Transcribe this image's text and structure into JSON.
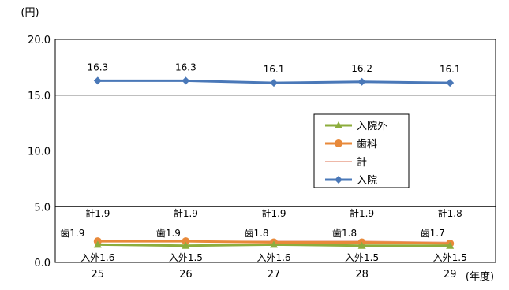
{
  "chart_data": {
    "type": "line",
    "y_unit": "(円)",
    "x_unit": "(年度)",
    "categories": [
      "25",
      "26",
      "27",
      "28",
      "29"
    ],
    "ylim": [
      0,
      20
    ],
    "yticks": [
      {
        "value": 0,
        "label": "0.0"
      },
      {
        "value": 5,
        "label": "5.0"
      },
      {
        "value": 10,
        "label": "10.0"
      },
      {
        "value": 15,
        "label": "15.0"
      },
      {
        "value": 20,
        "label": "20.0"
      }
    ],
    "grid": true,
    "legend_position": "right-middle",
    "series": [
      {
        "key": "nyuin",
        "name": "入院",
        "color": "#4a78b8",
        "marker": "diamond",
        "values": [
          16.3,
          16.3,
          16.1,
          16.2,
          16.1
        ],
        "labels": [
          "16.3",
          "16.3",
          "16.1",
          "16.2",
          "16.1"
        ]
      },
      {
        "key": "kei",
        "name": "計",
        "color": "#e8a08c",
        "marker": "none",
        "values": [
          1.9,
          1.9,
          1.9,
          1.9,
          1.8
        ],
        "labels": [
          "計1.9",
          "計1.9",
          "計1.9",
          "計1.9",
          "計1.8"
        ]
      },
      {
        "key": "shika",
        "name": "歯科",
        "color": "#e8893a",
        "marker": "circle",
        "values": [
          1.9,
          1.9,
          1.8,
          1.8,
          1.7
        ],
        "labels": [
          "歯1.9",
          "歯1.9",
          "歯1.8",
          "歯1.8",
          "歯1.7"
        ]
      },
      {
        "key": "nyuingai",
        "name": "入院外",
        "color": "#8cad3c",
        "marker": "triangle",
        "values": [
          1.6,
          1.5,
          1.6,
          1.5,
          1.5
        ],
        "labels": [
          "入外1.6",
          "入外1.5",
          "入外1.6",
          "入外1.5",
          "入外1.5"
        ]
      }
    ],
    "legend_order": [
      "nyuingai",
      "shika",
      "kei",
      "nyuin"
    ]
  }
}
